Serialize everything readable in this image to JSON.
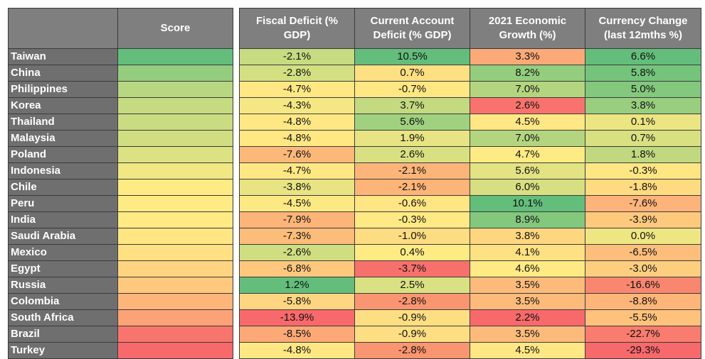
{
  "headers": {
    "country": "",
    "score": "Score",
    "fiscal": "Fiscal Deficit (%\nGDP)",
    "current": "Current Account\nDeficit (% GDP)",
    "growth": "2021 Economic\nGrowth (%)",
    "currency": "Currency Change\n(last 12mths %)"
  },
  "rows": [
    {
      "country": "Taiwan",
      "fiscal": "-2.1%",
      "current": "10.5%",
      "growth": "3.3%",
      "currency": "6.6%",
      "colors": {
        "score": "#63BE7B",
        "fiscal": "#C5DC80",
        "current": "#63BE7B",
        "growth": "#FBAA77",
        "currency": "#63BE7B"
      }
    },
    {
      "country": "China",
      "fiscal": "-2.8%",
      "current": "0.7%",
      "growth": "8.2%",
      "currency": "5.8%",
      "colors": {
        "score": "#94CD7E",
        "fiscal": "#D2E082",
        "current": "#FDE082",
        "growth": "#94CD7E",
        "currency": "#75C47C"
      }
    },
    {
      "country": "Philippines",
      "fiscal": "-4.7%",
      "current": "-0.7%",
      "growth": "7.0%",
      "currency": "5.0%",
      "colors": {
        "score": "#B8D780",
        "fiscal": "#FFE884",
        "current": "#FFE784",
        "growth": "#B4D57F",
        "currency": "#83C87D"
      }
    },
    {
      "country": "Korea",
      "fiscal": "-4.3%",
      "current": "3.7%",
      "growth": "2.6%",
      "currency": "3.8%",
      "colors": {
        "score": "#C6DB81",
        "fiscal": "#F5E783",
        "current": "#C4DA80",
        "growth": "#F8736D",
        "currency": "#98CE7E"
      }
    },
    {
      "country": "Thailand",
      "fiscal": "-4.8%",
      "current": "5.6%",
      "growth": "4.5%",
      "currency": "0.1%",
      "colors": {
        "score": "#CADC81",
        "fiscal": "#FFE884",
        "current": "#A0D17F",
        "growth": "#FEE784",
        "currency": "#EBE582"
      }
    },
    {
      "country": "Malaysia",
      "fiscal": "-4.8%",
      "current": "1.9%",
      "growth": "7.0%",
      "currency": "0.7%",
      "colors": {
        "score": "#D0DE81",
        "fiscal": "#FFE884",
        "current": "#E8E483",
        "growth": "#B4D57F",
        "currency": "#D9E081"
      }
    },
    {
      "country": "Poland",
      "fiscal": "-7.6%",
      "current": "2.6%",
      "growth": "4.7%",
      "currency": "1.8%",
      "colors": {
        "score": "#DCE182",
        "fiscal": "#FCB879",
        "current": "#D9E082",
        "growth": "#FFEB84",
        "currency": "#C0D980"
      }
    },
    {
      "country": "Indonesia",
      "fiscal": "-4.7%",
      "current": "-2.1%",
      "growth": "5.6%",
      "currency": "-0.3%",
      "colors": {
        "score": "#F1E783",
        "fiscal": "#FFE884",
        "current": "#FCB479",
        "growth": "#E4E383",
        "currency": "#FEE683"
      }
    },
    {
      "country": "Chile",
      "fiscal": "-3.8%",
      "current": "-2.1%",
      "growth": "6.0%",
      "currency": "-1.8%",
      "colors": {
        "score": "#FFEB84",
        "fiscal": "#E8E483",
        "current": "#FCB479",
        "growth": "#D7DF82",
        "currency": "#FEDA80"
      }
    },
    {
      "country": "Peru",
      "fiscal": "-4.5%",
      "current": "-0.6%",
      "growth": "10.1%",
      "currency": "-7.6%",
      "colors": {
        "score": "#FFEB84",
        "fiscal": "#FCE983",
        "current": "#FFE583",
        "growth": "#63BE7B",
        "currency": "#FDB37A"
      }
    },
    {
      "country": "India",
      "fiscal": "-7.9%",
      "current": "-0.3%",
      "growth": "8.9%",
      "currency": "-3.9%",
      "colors": {
        "score": "#FFEA84",
        "fiscal": "#FCB479",
        "current": "#FFE984",
        "growth": "#83C87D",
        "currency": "#FEC97D"
      }
    },
    {
      "country": "Saudi Arabia",
      "fiscal": "-7.3%",
      "current": "-1.0%",
      "growth": "3.8%",
      "currency": "0.0%",
      "colors": {
        "score": "#FFE683",
        "fiscal": "#FCBC7A",
        "current": "#FEDC81",
        "growth": "#FED680",
        "currency": "#EEE683"
      }
    },
    {
      "country": "Mexico",
      "fiscal": "-2.6%",
      "current": "0.4%",
      "growth": "4.1%",
      "currency": "-6.5%",
      "colors": {
        "score": "#FFE082",
        "fiscal": "#CFDE81",
        "current": "#FFEB84",
        "growth": "#FEE182",
        "currency": "#FDBE7B"
      }
    },
    {
      "country": "Egypt",
      "fiscal": "-6.8%",
      "current": "-3.7%",
      "growth": "4.6%",
      "currency": "-3.0%",
      "colors": {
        "score": "#FED480",
        "fiscal": "#FDC77D",
        "current": "#F8706C",
        "growth": "#FFEA84",
        "currency": "#FECE7F"
      }
    },
    {
      "country": "Russia",
      "fiscal": "1.2%",
      "current": "2.5%",
      "growth": "3.5%",
      "currency": "-16.6%",
      "colors": {
        "score": "#FEC97D",
        "fiscal": "#63BE7B",
        "current": "#DAE182",
        "growth": "#FCBB7A",
        "currency": "#F9876F"
      }
    },
    {
      "country": "Colombia",
      "fiscal": "-5.8%",
      "current": "-2.8%",
      "growth": "3.5%",
      "currency": "-8.8%",
      "colors": {
        "score": "#FDB57A",
        "fiscal": "#FED580",
        "current": "#F99570",
        "growth": "#FCBB7A",
        "currency": "#FDB579"
      }
    },
    {
      "country": "South Africa",
      "fiscal": "-13.9%",
      "current": "-0.9%",
      "growth": "2.2%",
      "currency": "-5.5%",
      "colors": {
        "score": "#FBA276",
        "fiscal": "#F8696B",
        "current": "#FEDE82",
        "growth": "#F8696B",
        "currency": "#FEC27C"
      }
    },
    {
      "country": "Brazil",
      "fiscal": "-8.5%",
      "current": "-0.9%",
      "growth": "3.5%",
      "currency": "-22.7%",
      "colors": {
        "score": "#F8756D",
        "fiscal": "#FCA877",
        "current": "#FEDE82",
        "growth": "#FCBB7A",
        "currency": "#F97C6E"
      }
    },
    {
      "country": "Turkey",
      "fiscal": "-4.8%",
      "current": "-2.8%",
      "growth": "4.5%",
      "currency": "-29.3%",
      "colors": {
        "score": "#F8696B",
        "fiscal": "#FFE884",
        "current": "#F99570",
        "growth": "#FEE784",
        "currency": "#F8696B"
      }
    }
  ]
}
